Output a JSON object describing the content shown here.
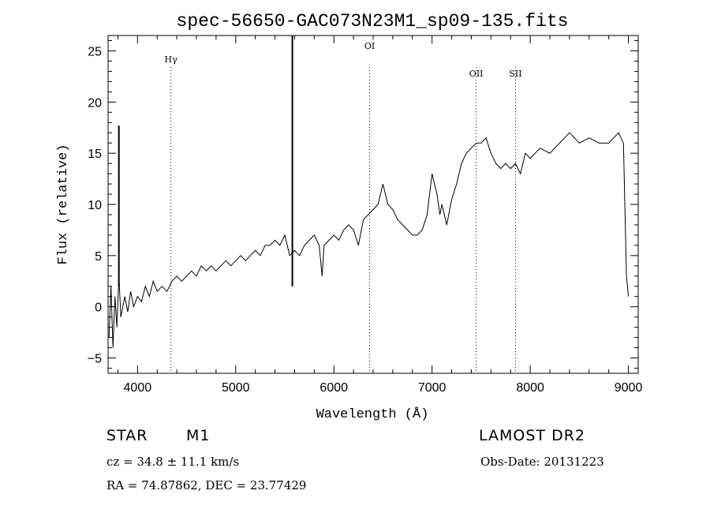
{
  "chart_data": {
    "type": "line",
    "title": "spec-56650-GAC073N23M1_sp09-135.fits",
    "xlabel": "Wavelength (Å)",
    "ylabel": "Flux (relative)",
    "xlim": [
      3700,
      9100
    ],
    "ylim": [
      -6.5,
      26.5
    ],
    "x_ticks": [
      4000,
      5000,
      6000,
      7000,
      8000,
      9000
    ],
    "y_ticks": [
      -5,
      0,
      5,
      10,
      15,
      20,
      25
    ],
    "grid": false,
    "line_color": "#000000",
    "series": [
      {
        "x": [
          3710,
          3730,
          3750,
          3770,
          3790,
          3810,
          3830,
          3850,
          3870,
          3900,
          3930,
          3960,
          4000,
          4040,
          4080,
          4120,
          4160,
          4200,
          4250,
          4300,
          4350,
          4400,
          4450,
          4500,
          4550,
          4600,
          4650,
          4700,
          4750,
          4800,
          4850,
          4900,
          4950,
          5000,
          5050,
          5100,
          5150,
          5200,
          5250,
          5300,
          5350,
          5400,
          5450,
          5500,
          5550,
          5600,
          5650,
          5700,
          5750,
          5800,
          5850,
          5880,
          5900,
          5950,
          6000,
          6050,
          6100,
          6150,
          6200,
          6250,
          6300,
          6350,
          6400,
          6450,
          6500,
          6550,
          6600,
          6650,
          6700,
          6750,
          6800,
          6850,
          6900,
          6950,
          7000,
          7050,
          7080,
          7100,
          7150,
          7200,
          7250,
          7300,
          7350,
          7400,
          7450,
          7500,
          7550,
          7600,
          7650,
          7700,
          7750,
          7800,
          7850,
          7900,
          7950,
          8000,
          8100,
          8200,
          8300,
          8400,
          8450,
          8500,
          8600,
          8700,
          8800,
          8900,
          8950,
          8980,
          9000
        ],
        "y": [
          -3,
          2,
          -4,
          1,
          -2,
          3,
          -1,
          0,
          1,
          -0.5,
          1.5,
          0,
          1,
          0.5,
          2,
          1,
          2.5,
          1.5,
          2,
          1.5,
          2.5,
          3,
          2.5,
          3,
          3.5,
          3,
          4,
          3.5,
          4,
          3.5,
          4,
          4.5,
          4,
          4.5,
          5,
          4.5,
          5,
          5.5,
          5,
          6,
          6,
          6.5,
          6,
          7,
          5,
          5.5,
          5,
          6,
          6.5,
          7,
          6,
          3,
          6,
          6.5,
          7,
          6.5,
          7.5,
          8,
          7.5,
          6,
          8.5,
          9,
          9.5,
          10,
          12,
          10,
          9.5,
          8.5,
          8,
          7.5,
          7,
          7,
          7.5,
          9,
          13,
          11,
          9,
          10,
          8,
          10.5,
          12,
          14,
          15,
          15.5,
          16,
          16,
          16.5,
          15,
          14,
          13.5,
          14,
          13.5,
          14,
          13,
          15,
          14.5,
          15.5,
          15,
          16,
          17,
          16.5,
          16,
          16.5,
          16,
          16,
          17,
          16,
          3,
          1
        ],
        "spikes": [
          {
            "x": 3810,
            "y": 17.7
          },
          {
            "x": 5577,
            "y": 26.5
          }
        ]
      }
    ],
    "lines": [
      {
        "label": "Hγ",
        "x": 4340
      },
      {
        "label": "OI",
        "x": 6364
      },
      {
        "label": "OII",
        "x": 7450
      },
      {
        "label": "SII",
        "x": 7850
      }
    ]
  },
  "info": {
    "object_type": "STAR",
    "subclass": "M1",
    "survey": "LAMOST DR2",
    "cz": "cz = 34.8 ± 11.1 km/s",
    "obs_date": "Obs-Date: 20131223",
    "coords": "RA =  74.87862, DEC =  23.77429"
  }
}
